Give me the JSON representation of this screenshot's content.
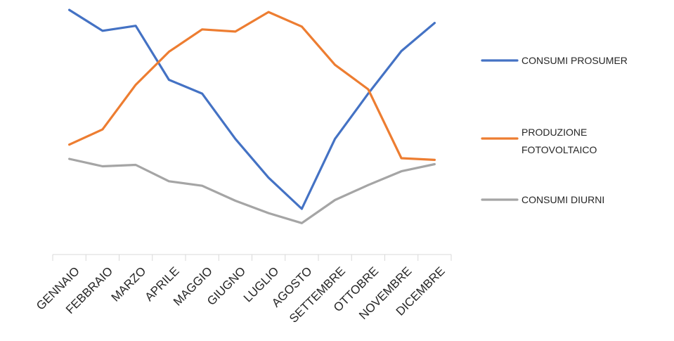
{
  "chart_data": {
    "type": "line",
    "title": "",
    "xlabel": "",
    "ylabel": "",
    "categories": [
      "GENNAIO",
      "FEBBRAIO",
      "MARZO",
      "APRILE",
      "MAGGIO",
      "GIUGNO",
      "LUGLIO",
      "AGOSTO",
      "SETTEMBRE",
      "OTTOBRE",
      "NOVEMBRE",
      "DICEMBRE"
    ],
    "ylim": [
      0,
      100
    ],
    "grid": false,
    "y_axis_visible": false,
    "legend_position": "right",
    "series": [
      {
        "name": "CONSUMI PROSUMER",
        "color": "#4472C4",
        "values": [
          97.9,
          89.1,
          91.2,
          68.5,
          62.7,
          43.6,
          27.3,
          14.2,
          43.6,
          62.7,
          80.6,
          92.4
        ]
      },
      {
        "name": "PRODUZIONE FOTOVOLTAICO",
        "color": "#ED7D31",
        "values": [
          41.2,
          47.6,
          66.4,
          80.3,
          89.7,
          88.8,
          97.0,
          90.9,
          74.8,
          64.5,
          35.5,
          34.8
        ]
      },
      {
        "name": "CONSUMI DIURNI",
        "color": "#A5A5A5",
        "values": [
          35.2,
          32.1,
          32.7,
          25.8,
          23.9,
          17.6,
          12.4,
          8.2,
          17.9,
          24.2,
          30.0,
          33.0
        ]
      }
    ]
  }
}
